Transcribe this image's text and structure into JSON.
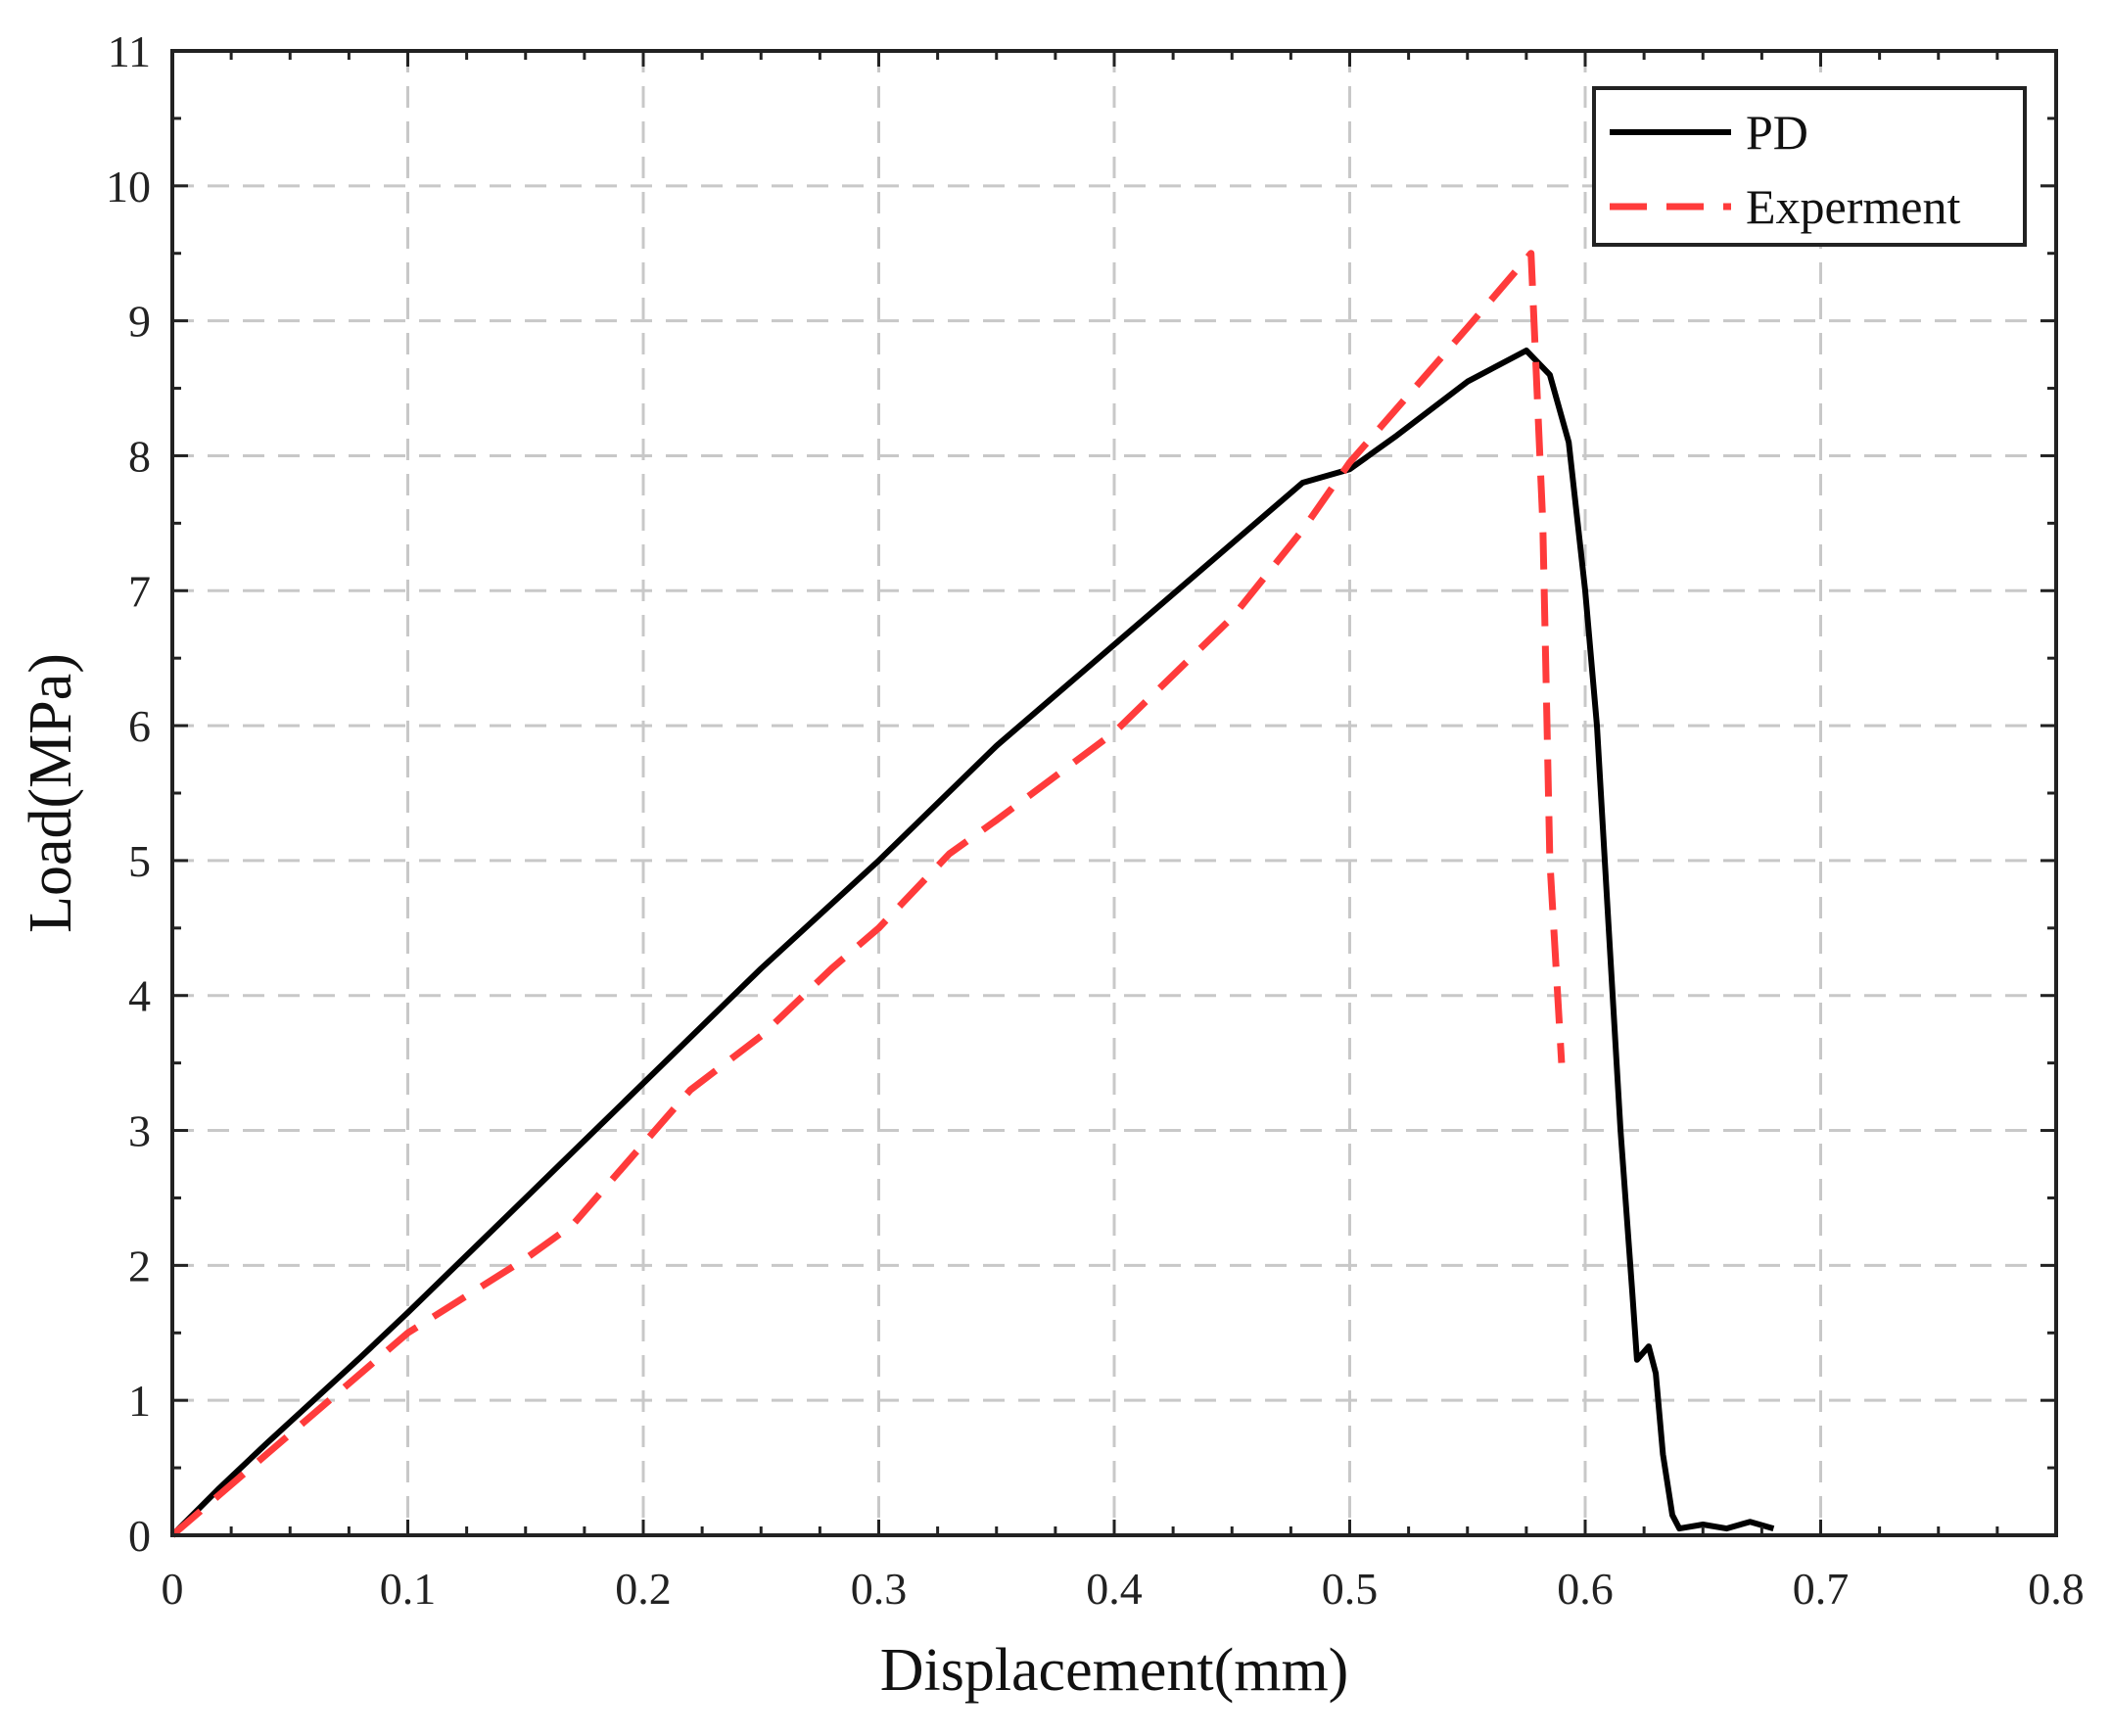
{
  "chart_data": {
    "type": "line",
    "title": "",
    "xlabel": "Displacement(mm)",
    "ylabel": "Load(MPa)",
    "xlim": [
      0,
      0.8
    ],
    "ylim": [
      0,
      11
    ],
    "xticks": [
      0,
      0.1,
      0.2,
      0.3,
      0.4,
      0.5,
      0.6,
      0.7,
      0.8
    ],
    "xtick_labels": [
      "0",
      "0.1",
      "0.2",
      "0.3",
      "0.4",
      "0.5",
      "0.6",
      "0.7",
      "0.8"
    ],
    "yticks": [
      0,
      1,
      2,
      3,
      4,
      5,
      6,
      7,
      8,
      9,
      10,
      11
    ],
    "ytick_labels": [
      "0",
      "1",
      "2",
      "3",
      "4",
      "5",
      "6",
      "7",
      "8",
      "9",
      "10",
      "11"
    ],
    "grid": true,
    "legend_position": "top-right",
    "series": [
      {
        "name": "PD",
        "color": "#000000",
        "style": "solid",
        "points": [
          [
            0,
            0
          ],
          [
            0.02,
            0.35
          ],
          [
            0.04,
            0.68
          ],
          [
            0.06,
            1.0
          ],
          [
            0.08,
            1.32
          ],
          [
            0.1,
            1.65
          ],
          [
            0.15,
            2.5
          ],
          [
            0.2,
            3.35
          ],
          [
            0.25,
            4.2
          ],
          [
            0.3,
            5.0
          ],
          [
            0.35,
            5.85
          ],
          [
            0.4,
            6.6
          ],
          [
            0.45,
            7.35
          ],
          [
            0.48,
            7.8
          ],
          [
            0.5,
            7.9
          ],
          [
            0.52,
            8.15
          ],
          [
            0.55,
            8.55
          ],
          [
            0.575,
            8.78
          ],
          [
            0.585,
            8.6
          ],
          [
            0.593,
            8.1
          ],
          [
            0.6,
            7.0
          ],
          [
            0.605,
            6.0
          ],
          [
            0.61,
            4.5
          ],
          [
            0.615,
            3.0
          ],
          [
            0.62,
            1.8
          ],
          [
            0.622,
            1.3
          ],
          [
            0.627,
            1.4
          ],
          [
            0.63,
            1.2
          ],
          [
            0.633,
            0.6
          ],
          [
            0.637,
            0.15
          ],
          [
            0.64,
            0.05
          ],
          [
            0.65,
            0.08
          ],
          [
            0.66,
            0.05
          ],
          [
            0.67,
            0.1
          ],
          [
            0.68,
            0.05
          ]
        ]
      },
      {
        "name": "Experment",
        "color": "#ff3b3b",
        "style": "dash",
        "points": [
          [
            0,
            0
          ],
          [
            0.05,
            0.75
          ],
          [
            0.1,
            1.5
          ],
          [
            0.15,
            2.05
          ],
          [
            0.17,
            2.3
          ],
          [
            0.2,
            2.9
          ],
          [
            0.22,
            3.3
          ],
          [
            0.25,
            3.7
          ],
          [
            0.28,
            4.2
          ],
          [
            0.3,
            4.5
          ],
          [
            0.33,
            5.05
          ],
          [
            0.35,
            5.3
          ],
          [
            0.4,
            5.95
          ],
          [
            0.45,
            6.8
          ],
          [
            0.48,
            7.45
          ],
          [
            0.5,
            7.95
          ],
          [
            0.55,
            8.95
          ],
          [
            0.577,
            9.5
          ],
          [
            0.582,
            7.5
          ],
          [
            0.585,
            5.0
          ],
          [
            0.59,
            3.5
          ]
        ]
      }
    ]
  },
  "legend": {
    "items": [
      "PD",
      "Experment"
    ]
  }
}
